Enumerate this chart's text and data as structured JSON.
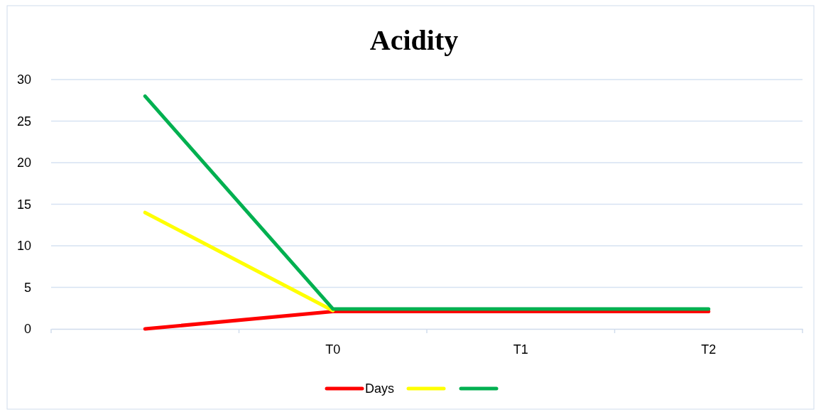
{
  "chart_data": {
    "type": "line",
    "title": "Acidity",
    "categories": [
      null,
      "T0",
      "T1",
      "T2"
    ],
    "series": [
      {
        "name": "Days",
        "color": "#ff0000",
        "values": [
          0,
          2.1,
          2.1,
          2.1
        ]
      },
      {
        "color": "#ffff00",
        "values": [
          14,
          2.2,
          null,
          null
        ]
      },
      {
        "color": "#00b050",
        "values": [
          28,
          2.4,
          2.4,
          2.4
        ]
      }
    ],
    "ylim": [
      0,
      30
    ],
    "yticks": [
      0,
      5,
      10,
      15,
      20,
      25,
      30
    ],
    "grid": "y",
    "legend": "bottom",
    "marker": "none",
    "line_style": "solid"
  }
}
